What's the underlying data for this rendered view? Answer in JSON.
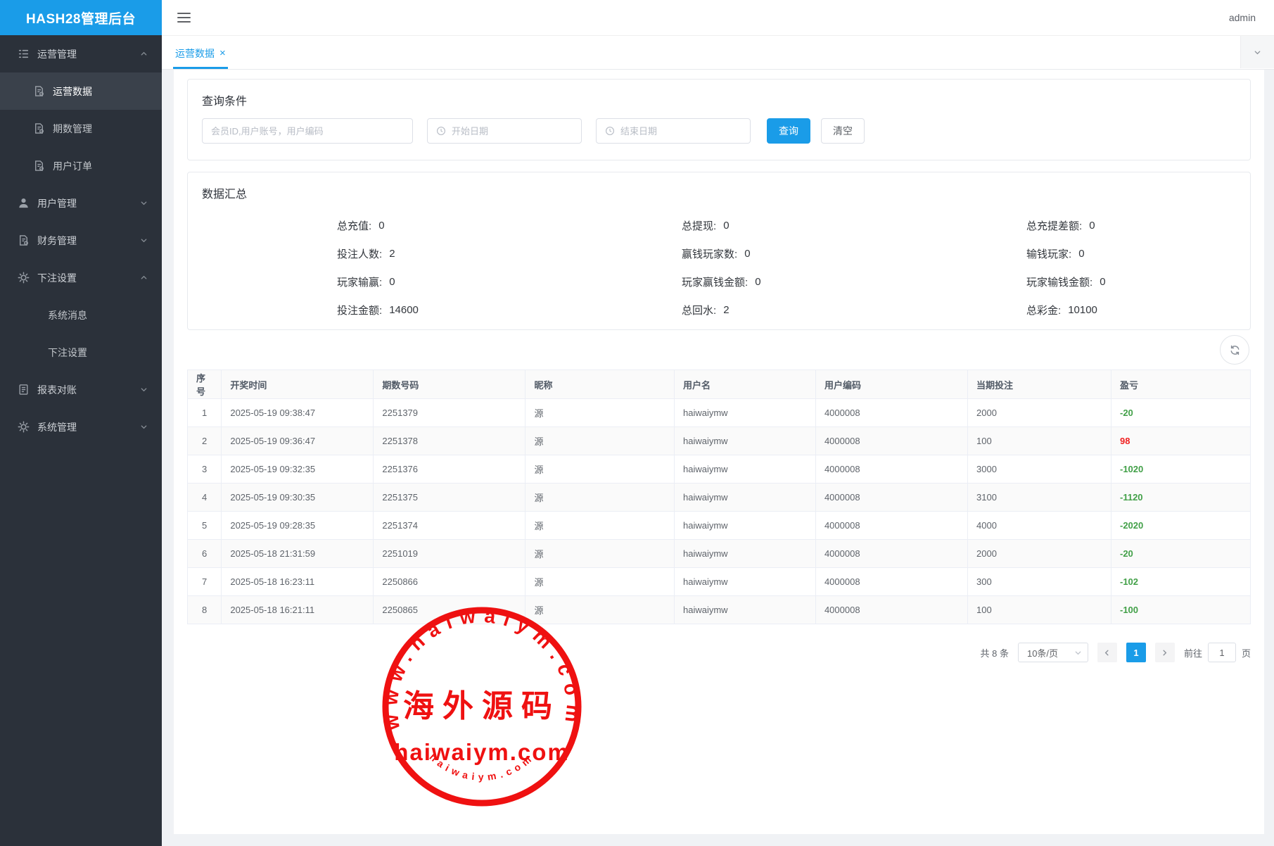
{
  "app": {
    "title": "HASH28管理后台"
  },
  "header": {
    "username": "admin"
  },
  "tabbar": {
    "tabs": [
      {
        "label": "运营数据",
        "close": "×",
        "active": true
      }
    ]
  },
  "sidebar": {
    "menus": [
      {
        "label": "运营管理",
        "icon": "list-icon",
        "expanded": true,
        "children": [
          {
            "label": "运营数据",
            "icon": "doc-gear-icon",
            "active": true
          },
          {
            "label": "期数管理",
            "icon": "doc-gear-icon",
            "active": false
          },
          {
            "label": "用户订单",
            "icon": "doc-gear-icon",
            "active": false
          }
        ]
      },
      {
        "label": "用户管理",
        "icon": "user-icon",
        "expanded": false
      },
      {
        "label": "财务管理",
        "icon": "doc-gear-icon",
        "expanded": false
      },
      {
        "label": "下注设置",
        "icon": "gear-icon",
        "expanded": true,
        "children": [
          {
            "label": "系统消息",
            "active": false
          },
          {
            "label": "下注设置",
            "active": false
          }
        ]
      },
      {
        "label": "报表对账",
        "icon": "doc-icon",
        "expanded": false
      },
      {
        "label": "系统管理",
        "icon": "gear-icon",
        "expanded": false
      }
    ]
  },
  "query": {
    "title": "查询条件",
    "keyword_placeholder": "会员ID,用户账号，用户编码",
    "start_placeholder": "开始日期",
    "end_placeholder": "结束日期",
    "search_label": "查询",
    "reset_label": "清空"
  },
  "summary": {
    "title": "数据汇总",
    "columns": [
      [
        {
          "label": "总充值",
          "value": "0"
        },
        {
          "label": "投注人数",
          "value": "2"
        },
        {
          "label": "玩家输赢",
          "value": "0"
        },
        {
          "label": "投注金额",
          "value": "14600"
        }
      ],
      [
        {
          "label": "总提现",
          "value": "0"
        },
        {
          "label": "赢钱玩家数",
          "value": "0"
        },
        {
          "label": "玩家赢钱金额",
          "value": "0"
        },
        {
          "label": "总回水",
          "value": "2"
        }
      ],
      [
        {
          "label": "总充提差额",
          "value": "0"
        },
        {
          "label": "输钱玩家",
          "value": "0"
        },
        {
          "label": "玩家输钱金额",
          "value": "0"
        },
        {
          "label": "总彩金",
          "value": "10100"
        }
      ]
    ]
  },
  "table": {
    "columns": [
      "序号",
      "开奖时间",
      "期数号码",
      "昵称",
      "用户名",
      "用户编码",
      "当期投注",
      "盈亏"
    ],
    "rows": [
      {
        "seq": "1",
        "time": "2025-05-19 09:38:47",
        "period": "2251379",
        "nickname": "源",
        "username": "haiwaiymw",
        "user_code": "4000008",
        "bet": "2000",
        "profit": "-20",
        "profit_color": "green"
      },
      {
        "seq": "2",
        "time": "2025-05-19 09:36:47",
        "period": "2251378",
        "nickname": "源",
        "username": "haiwaiymw",
        "user_code": "4000008",
        "bet": "100",
        "profit": "98",
        "profit_color": "red"
      },
      {
        "seq": "3",
        "time": "2025-05-19 09:32:35",
        "period": "2251376",
        "nickname": "源",
        "username": "haiwaiymw",
        "user_code": "4000008",
        "bet": "3000",
        "profit": "-1020",
        "profit_color": "green"
      },
      {
        "seq": "4",
        "time": "2025-05-19 09:30:35",
        "period": "2251375",
        "nickname": "源",
        "username": "haiwaiymw",
        "user_code": "4000008",
        "bet": "3100",
        "profit": "-1120",
        "profit_color": "green"
      },
      {
        "seq": "5",
        "time": "2025-05-19 09:28:35",
        "period": "2251374",
        "nickname": "源",
        "username": "haiwaiymw",
        "user_code": "4000008",
        "bet": "4000",
        "profit": "-2020",
        "profit_color": "green"
      },
      {
        "seq": "6",
        "time": "2025-05-18 21:31:59",
        "period": "2251019",
        "nickname": "源",
        "username": "haiwaiymw",
        "user_code": "4000008",
        "bet": "2000",
        "profit": "-20",
        "profit_color": "green"
      },
      {
        "seq": "7",
        "time": "2025-05-18 16:23:11",
        "period": "2250866",
        "nickname": "源",
        "username": "haiwaiymw",
        "user_code": "4000008",
        "bet": "300",
        "profit": "-102",
        "profit_color": "green"
      },
      {
        "seq": "8",
        "time": "2025-05-18 16:21:11",
        "period": "2250865",
        "nickname": "源",
        "username": "haiwaiymw",
        "user_code": "4000008",
        "bet": "100",
        "profit": "-100",
        "profit_color": "green"
      }
    ]
  },
  "pagination": {
    "total_label": "共 8 条",
    "page_size_label": "10条/页",
    "current_page": "1",
    "goto_label": "前往",
    "goto_value": "1",
    "page_suffix": "页"
  },
  "watermark": {
    "top_text": "www.haiwaiym.com",
    "center_text": "海外源码",
    "main_text": "haiwaiym.com",
    "bottom_text": "haiwaiym.com"
  },
  "colors": {
    "accent": "#1a9ce8",
    "profit_green": "#42a048",
    "profit_red": "#f01f1f",
    "stamp_red": "#ee0000",
    "sidebar_bg": "#2b313a"
  }
}
